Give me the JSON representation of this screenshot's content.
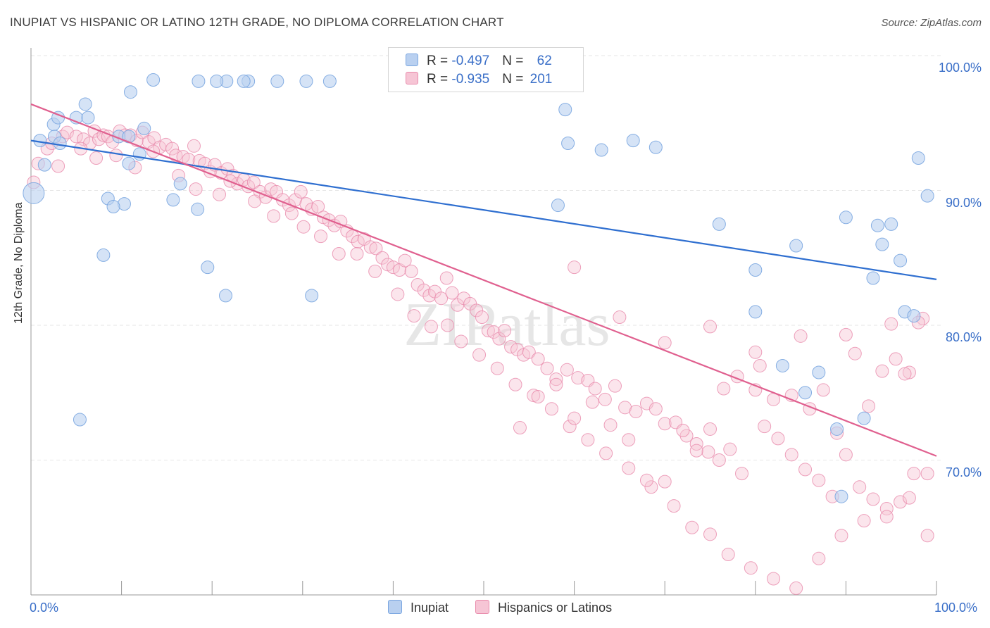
{
  "title": "INUPIAT VS HISPANIC OR LATINO 12TH GRADE, NO DIPLOMA CORRELATION CHART",
  "source": "Source: ZipAtlas.com",
  "watermark": "ZIPatlas",
  "colors": {
    "blue": "#7aa6e0",
    "blue_fill": "#b9d0f0",
    "blue_line": "#2f6fd0",
    "pink": "#e98aab",
    "pink_fill": "#f6c5d5",
    "pink_line": "#e0608f",
    "axis_text": "#3a6fc8",
    "grid": "#e6e6e6"
  },
  "legend": {
    "rows": [
      {
        "r_label": "R = ",
        "r_value": "-0.497",
        "n_label": "N = ",
        "n_value": "62"
      },
      {
        "r_label": "R = ",
        "r_value": "-0.935",
        "n_label": "N = ",
        "n_value": "201"
      }
    ]
  },
  "bottom_legend": [
    "Inupiat",
    "Hispanics or Latinos"
  ],
  "chart_data": {
    "type": "scatter",
    "title": "INUPIAT VS HISPANIC OR LATINO 12TH GRADE, NO DIPLOMA CORRELATION CHART",
    "xlabel": "",
    "ylabel": "12th Grade, No Diploma",
    "x_tick_labels": [
      "0.0%",
      "100.0%"
    ],
    "y_tick_labels": [
      "70.0%",
      "80.0%",
      "90.0%",
      "100.0%"
    ],
    "y_ticks": [
      70,
      80,
      90,
      100
    ],
    "xlim": [
      0,
      100
    ],
    "ylim": [
      60,
      100
    ],
    "grid": true,
    "legend_position": "top-center",
    "series": [
      {
        "name": "Inupiat",
        "color": "#7aa6e0",
        "trend": {
          "x0": 0,
          "y0": 93.7,
          "x1": 100,
          "y1": 83.4
        },
        "points": [
          [
            0.3,
            89.8
          ],
          [
            1.0,
            93.7
          ],
          [
            2.5,
            94.9
          ],
          [
            3.0,
            95.4
          ],
          [
            5.0,
            95.4
          ],
          [
            2.6,
            94.0
          ],
          [
            3.2,
            93.5
          ],
          [
            6.0,
            96.4
          ],
          [
            6.3,
            95.4
          ],
          [
            9.7,
            94.0
          ],
          [
            10.8,
            94.0
          ],
          [
            1.5,
            91.9
          ],
          [
            10.3,
            89.0
          ],
          [
            8.5,
            89.4
          ],
          [
            9.1,
            88.8
          ],
          [
            8.0,
            85.2
          ],
          [
            12.0,
            92.7
          ],
          [
            12.5,
            94.6
          ],
          [
            15.7,
            89.3
          ],
          [
            16.5,
            90.5
          ],
          [
            18.4,
            88.6
          ],
          [
            19.5,
            84.3
          ],
          [
            21.5,
            82.2
          ],
          [
            21.6,
            98.1
          ],
          [
            24.0,
            98.1
          ],
          [
            27.2,
            98.1
          ],
          [
            30.4,
            98.1
          ],
          [
            31.0,
            82.2
          ],
          [
            5.4,
            73.0
          ],
          [
            10.8,
            92.0
          ],
          [
            11.0,
            97.3
          ],
          [
            13.5,
            98.2
          ],
          [
            18.5,
            98.1
          ],
          [
            20.5,
            98.1
          ],
          [
            23.5,
            98.1
          ],
          [
            33.0,
            98.1
          ],
          [
            59.0,
            96.0
          ],
          [
            59.3,
            93.5
          ],
          [
            58.2,
            88.9
          ],
          [
            63.0,
            93.0
          ],
          [
            66.5,
            93.7
          ],
          [
            69.0,
            93.2
          ],
          [
            76.0,
            87.5
          ],
          [
            80.0,
            84.1
          ],
          [
            80.0,
            81.0
          ],
          [
            83.0,
            77.0
          ],
          [
            84.5,
            85.9
          ],
          [
            85.5,
            75.0
          ],
          [
            87.0,
            76.5
          ],
          [
            89.0,
            72.3
          ],
          [
            90.0,
            88.0
          ],
          [
            93.0,
            83.5
          ],
          [
            94.0,
            86.0
          ],
          [
            95.0,
            87.5
          ],
          [
            96.0,
            84.8
          ],
          [
            96.5,
            81.0
          ],
          [
            97.5,
            80.7
          ],
          [
            99.0,
            89.6
          ],
          [
            98.0,
            92.4
          ],
          [
            93.5,
            87.4
          ],
          [
            92.0,
            73.1
          ],
          [
            89.5,
            67.3
          ]
        ]
      },
      {
        "name": "Hispanics or Latinos",
        "color": "#e98aab",
        "trend": {
          "x0": 0,
          "y0": 96.4,
          "x1": 100,
          "y1": 70.3
        },
        "points": [
          [
            0.3,
            90.6
          ],
          [
            0.8,
            92.0
          ],
          [
            1.8,
            93.1
          ],
          [
            2.3,
            93.5
          ],
          [
            3.5,
            94.0
          ],
          [
            4.0,
            94.3
          ],
          [
            5.0,
            94.0
          ],
          [
            5.8,
            93.8
          ],
          [
            6.5,
            93.5
          ],
          [
            7.0,
            94.4
          ],
          [
            7.5,
            93.8
          ],
          [
            8.0,
            94.1
          ],
          [
            8.5,
            94.0
          ],
          [
            9.0,
            93.6
          ],
          [
            9.8,
            94.4
          ],
          [
            10.4,
            94.1
          ],
          [
            11.0,
            94.1
          ],
          [
            11.7,
            93.7
          ],
          [
            12.3,
            94.3
          ],
          [
            13.0,
            93.6
          ],
          [
            13.6,
            93.9
          ],
          [
            14.2,
            93.2
          ],
          [
            14.9,
            93.4
          ],
          [
            15.6,
            93.1
          ],
          [
            16.0,
            92.6
          ],
          [
            16.8,
            92.5
          ],
          [
            17.4,
            92.3
          ],
          [
            18.0,
            93.3
          ],
          [
            18.6,
            92.2
          ],
          [
            19.2,
            92.0
          ],
          [
            19.8,
            91.4
          ],
          [
            20.3,
            91.9
          ],
          [
            21.0,
            91.3
          ],
          [
            21.7,
            91.6
          ],
          [
            22.3,
            91.1
          ],
          [
            22.8,
            90.5
          ],
          [
            23.5,
            90.8
          ],
          [
            24.0,
            90.3
          ],
          [
            24.6,
            90.6
          ],
          [
            25.3,
            89.9
          ],
          [
            25.9,
            89.5
          ],
          [
            26.5,
            90.1
          ],
          [
            27.1,
            89.9
          ],
          [
            27.8,
            89.3
          ],
          [
            28.5,
            88.9
          ],
          [
            29.2,
            89.3
          ],
          [
            29.8,
            89.9
          ],
          [
            30.4,
            89.0
          ],
          [
            31.0,
            88.6
          ],
          [
            31.7,
            88.8
          ],
          [
            32.3,
            88.0
          ],
          [
            32.9,
            87.8
          ],
          [
            33.5,
            87.4
          ],
          [
            34.2,
            87.7
          ],
          [
            34.9,
            87.0
          ],
          [
            35.5,
            86.6
          ],
          [
            36.1,
            86.2
          ],
          [
            36.8,
            86.4
          ],
          [
            37.5,
            85.8
          ],
          [
            38.1,
            85.7
          ],
          [
            38.8,
            85.0
          ],
          [
            39.4,
            84.5
          ],
          [
            40.0,
            84.3
          ],
          [
            40.7,
            84.1
          ],
          [
            41.3,
            84.8
          ],
          [
            42.0,
            84.0
          ],
          [
            42.7,
            83.0
          ],
          [
            43.4,
            82.6
          ],
          [
            44.0,
            82.2
          ],
          [
            44.6,
            82.5
          ],
          [
            45.3,
            82.0
          ],
          [
            45.9,
            83.5
          ],
          [
            46.5,
            82.4
          ],
          [
            47.1,
            81.5
          ],
          [
            47.8,
            82.0
          ],
          [
            48.5,
            81.6
          ],
          [
            49.2,
            81.1
          ],
          [
            49.8,
            80.6
          ],
          [
            50.5,
            79.6
          ],
          [
            51.1,
            79.5
          ],
          [
            51.7,
            79.0
          ],
          [
            52.3,
            79.6
          ],
          [
            53.0,
            78.4
          ],
          [
            53.7,
            78.2
          ],
          [
            54.4,
            77.8
          ],
          [
            55.0,
            78.0
          ],
          [
            56.0,
            77.5
          ],
          [
            57.0,
            76.8
          ],
          [
            58.0,
            76.0
          ],
          [
            59.2,
            76.7
          ],
          [
            60.4,
            76.1
          ],
          [
            61.5,
            75.9
          ],
          [
            62.3,
            75.3
          ],
          [
            63.4,
            74.5
          ],
          [
            64.5,
            75.5
          ],
          [
            65.6,
            73.9
          ],
          [
            66.8,
            73.6
          ],
          [
            68.0,
            74.2
          ],
          [
            69.0,
            73.8
          ],
          [
            70.0,
            72.7
          ],
          [
            71.2,
            72.8
          ],
          [
            72.4,
            71.8
          ],
          [
            73.5,
            71.2
          ],
          [
            74.8,
            70.6
          ],
          [
            76.0,
            70.0
          ],
          [
            77.2,
            70.8
          ],
          [
            78.5,
            69.0
          ],
          [
            80.0,
            75.2
          ],
          [
            81.0,
            72.5
          ],
          [
            82.5,
            71.6
          ],
          [
            84.0,
            70.4
          ],
          [
            85.5,
            69.3
          ],
          [
            87.0,
            68.5
          ],
          [
            88.5,
            67.3
          ],
          [
            90.0,
            70.4
          ],
          [
            91.5,
            68.0
          ],
          [
            93.0,
            67.1
          ],
          [
            94.5,
            66.4
          ],
          [
            96.0,
            66.9
          ],
          [
            97.5,
            69.0
          ],
          [
            99.0,
            69.0
          ],
          [
            3.0,
            91.8
          ],
          [
            5.5,
            93.1
          ],
          [
            7.2,
            92.4
          ],
          [
            9.4,
            92.6
          ],
          [
            11.5,
            91.7
          ],
          [
            13.5,
            92.9
          ],
          [
            16.3,
            91.1
          ],
          [
            18.2,
            90.1
          ],
          [
            20.8,
            89.7
          ],
          [
            22.0,
            90.7
          ],
          [
            24.7,
            89.2
          ],
          [
            26.8,
            88.1
          ],
          [
            28.8,
            88.3
          ],
          [
            30.1,
            87.3
          ],
          [
            32.0,
            86.6
          ],
          [
            34.0,
            85.3
          ],
          [
            36.0,
            85.3
          ],
          [
            38.0,
            84.0
          ],
          [
            40.5,
            82.3
          ],
          [
            42.3,
            80.7
          ],
          [
            44.2,
            79.9
          ],
          [
            46.0,
            80.0
          ],
          [
            47.5,
            78.8
          ],
          [
            49.5,
            77.8
          ],
          [
            51.5,
            76.8
          ],
          [
            53.5,
            75.6
          ],
          [
            55.5,
            74.8
          ],
          [
            57.5,
            73.8
          ],
          [
            59.5,
            72.5
          ],
          [
            61.5,
            71.5
          ],
          [
            63.5,
            70.5
          ],
          [
            66.0,
            69.4
          ],
          [
            68.5,
            68.0
          ],
          [
            71.0,
            66.6
          ],
          [
            73.0,
            65.0
          ],
          [
            75.0,
            64.5
          ],
          [
            77.0,
            63.0
          ],
          [
            79.5,
            62.0
          ],
          [
            82.0,
            61.2
          ],
          [
            84.5,
            60.5
          ],
          [
            87.0,
            62.7
          ],
          [
            89.5,
            64.4
          ],
          [
            92.0,
            65.5
          ],
          [
            94.5,
            65.8
          ],
          [
            97.0,
            67.2
          ],
          [
            99.0,
            64.4
          ],
          [
            60.0,
            84.3
          ],
          [
            65.0,
            80.6
          ],
          [
            70.0,
            78.7
          ],
          [
            75.0,
            79.9
          ],
          [
            80.0,
            78.0
          ],
          [
            85.0,
            79.2
          ],
          [
            90.0,
            79.3
          ],
          [
            95.0,
            80.1
          ],
          [
            98.5,
            80.5
          ],
          [
            98.0,
            80.2
          ],
          [
            97.0,
            76.5
          ],
          [
            96.5,
            76.4
          ],
          [
            95.5,
            77.5
          ],
          [
            94.0,
            76.6
          ],
          [
            92.5,
            74.0
          ],
          [
            91.0,
            77.9
          ],
          [
            89.0,
            72.0
          ],
          [
            87.5,
            75.2
          ],
          [
            86.0,
            73.8
          ],
          [
            84.0,
            74.8
          ],
          [
            82.0,
            74.5
          ],
          [
            80.5,
            77.0
          ],
          [
            78.0,
            76.2
          ],
          [
            76.5,
            75.3
          ],
          [
            75.0,
            72.3
          ],
          [
            73.5,
            70.7
          ],
          [
            72.0,
            72.2
          ],
          [
            70.0,
            68.4
          ],
          [
            68.0,
            68.5
          ],
          [
            66.0,
            71.5
          ],
          [
            64.0,
            72.6
          ],
          [
            62.0,
            74.3
          ],
          [
            60.0,
            73.1
          ],
          [
            58.0,
            75.6
          ],
          [
            56.0,
            74.7
          ],
          [
            54.0,
            72.4
          ]
        ]
      }
    ]
  }
}
